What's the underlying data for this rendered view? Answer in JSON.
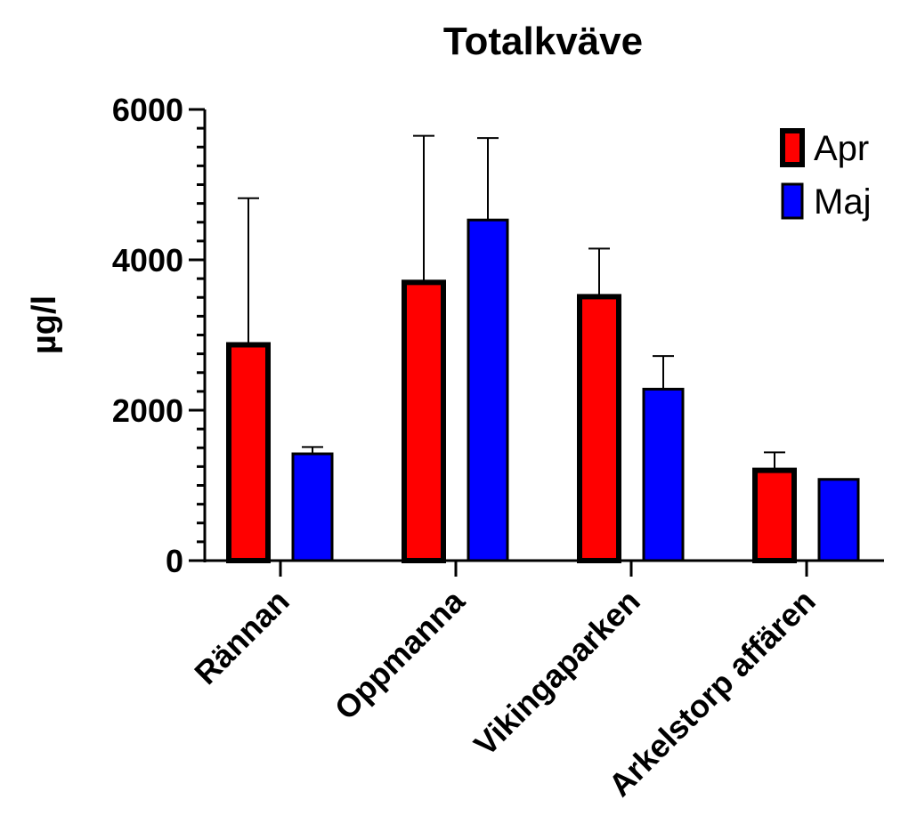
{
  "chart_data": {
    "type": "bar",
    "title": "Totalkväve",
    "xlabel": "",
    "ylabel": "µg/l",
    "ylim": [
      0,
      6000
    ],
    "yticks": [
      0,
      2000,
      4000,
      6000
    ],
    "categories": [
      "Rännan",
      "Oppmanna",
      "Vikingaparken",
      "Arkelstorp affären"
    ],
    "series": [
      {
        "name": "Apr",
        "values": [
          2870,
          3700,
          3510,
          1200
        ],
        "error_plus": [
          1950,
          1950,
          640,
          240
        ],
        "color": "#ff0000"
      },
      {
        "name": "Maj",
        "values": [
          1420,
          4530,
          2280,
          1080
        ],
        "error_plus": [
          90,
          1090,
          440,
          0
        ],
        "color": "#0000ff"
      }
    ],
    "legend_position": "top-right",
    "grid": false
  }
}
